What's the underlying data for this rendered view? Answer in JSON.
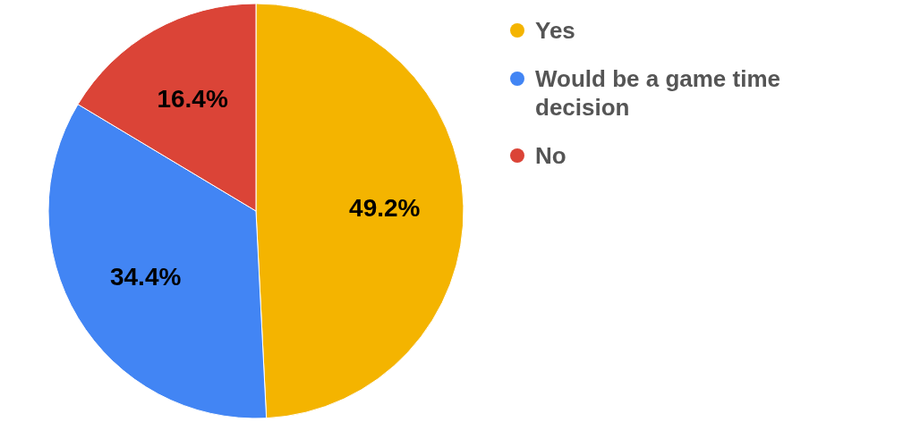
{
  "chart_data": {
    "type": "pie",
    "categories": [
      "Yes",
      "Would be a game time decision",
      "No"
    ],
    "values": [
      49.2,
      34.4,
      16.4
    ],
    "colors": [
      "#f4b400",
      "#4285f4",
      "#db4437"
    ],
    "value_labels": [
      "49.2%",
      "34.4%",
      "16.4%"
    ],
    "legend": "right"
  }
}
